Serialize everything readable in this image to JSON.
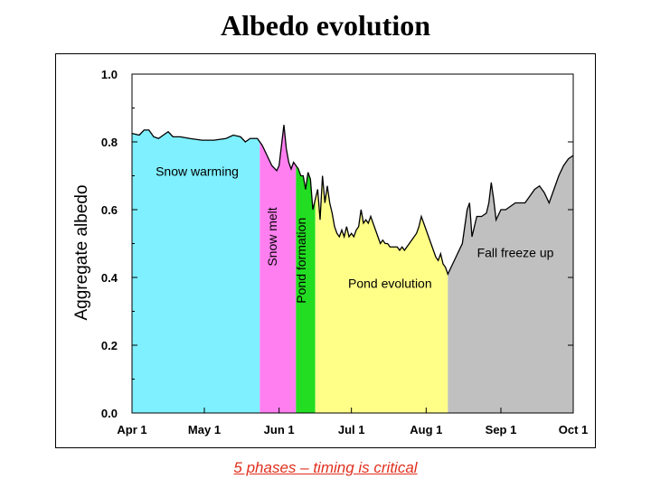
{
  "title": "Albedo evolution",
  "caption": "5 phases – timing is critical",
  "chart_data": {
    "type": "area",
    "title": "Albedo evolution",
    "xlabel": "",
    "ylabel": "Aggregate albedo",
    "x_unit": "day of year",
    "xlim": [
      91,
      274
    ],
    "ylim": [
      0.0,
      1.0
    ],
    "x_ticks": [
      {
        "label": "Apr 1",
        "value": 91
      },
      {
        "label": "May 1",
        "value": 121
      },
      {
        "label": "Jun 1",
        "value": 152
      },
      {
        "label": "Jul 1",
        "value": 182
      },
      {
        "label": "Aug 1",
        "value": 213
      },
      {
        "label": "Sep 1",
        "value": 244
      },
      {
        "label": "Oct 1",
        "value": 274
      }
    ],
    "y_ticks": [
      {
        "label": "0.0",
        "value": 0.0
      },
      {
        "label": "0.2",
        "value": 0.2
      },
      {
        "label": "0.4",
        "value": 0.4
      },
      {
        "label": "0.6",
        "value": 0.6
      },
      {
        "label": "0.8",
        "value": 0.8
      },
      {
        "label": "1.0",
        "value": 1.0
      }
    ],
    "phases": [
      {
        "name": "Snow warming",
        "start": 91,
        "end": 144,
        "color": "#7ff0ff",
        "label_orientation": "horizontal"
      },
      {
        "name": "Snow melt",
        "start": 144,
        "end": 159,
        "color": "#ff7ff0",
        "label_orientation": "vertical"
      },
      {
        "name": "Pond formation",
        "start": 159,
        "end": 167,
        "color": "#22dd22",
        "label_orientation": "vertical"
      },
      {
        "name": "Pond evolution",
        "start": 167,
        "end": 222,
        "color": "#ffff88",
        "label_orientation": "horizontal"
      },
      {
        "name": "Fall freeze up",
        "start": 222,
        "end": 274,
        "color": "#c0c0c0",
        "label_orientation": "horizontal"
      }
    ],
    "series": [
      {
        "name": "Aggregate albedo",
        "x": [
          91,
          94,
          96,
          98,
          100,
          102,
          104,
          106,
          108,
          111,
          115,
          120,
          125,
          130,
          133,
          136,
          138,
          140,
          143,
          145,
          147,
          149,
          151,
          152,
          154,
          155,
          156,
          157,
          158,
          159,
          160,
          161,
          162,
          163,
          164,
          165,
          166,
          167,
          168,
          169,
          170,
          171,
          172,
          173,
          174,
          175,
          176,
          177,
          178,
          179,
          180,
          181,
          182,
          183,
          184,
          185,
          186,
          187,
          188,
          189,
          190,
          191,
          192,
          193,
          194,
          195,
          196,
          197,
          198,
          199,
          200,
          201,
          202,
          203,
          204,
          205,
          206,
          207,
          208,
          209,
          210,
          211,
          212,
          213,
          214,
          215,
          216,
          217,
          218,
          219,
          220,
          221,
          222,
          224,
          226,
          228,
          229,
          230,
          231,
          232,
          234,
          236,
          238,
          239,
          240,
          241,
          242,
          244,
          246,
          248,
          250,
          252,
          254,
          256,
          258,
          260,
          262,
          264,
          266,
          268,
          270,
          272,
          274
        ],
        "y": [
          0.825,
          0.82,
          0.835,
          0.835,
          0.815,
          0.81,
          0.82,
          0.83,
          0.815,
          0.815,
          0.81,
          0.805,
          0.805,
          0.81,
          0.82,
          0.815,
          0.8,
          0.81,
          0.81,
          0.79,
          0.76,
          0.73,
          0.715,
          0.73,
          0.85,
          0.78,
          0.74,
          0.72,
          0.74,
          0.73,
          0.72,
          0.7,
          0.7,
          0.66,
          0.71,
          0.69,
          0.6,
          0.63,
          0.66,
          0.57,
          0.7,
          0.62,
          0.67,
          0.62,
          0.59,
          0.55,
          0.53,
          0.52,
          0.54,
          0.52,
          0.55,
          0.52,
          0.53,
          0.52,
          0.54,
          0.55,
          0.6,
          0.56,
          0.57,
          0.56,
          0.58,
          0.56,
          0.54,
          0.52,
          0.5,
          0.51,
          0.5,
          0.5,
          0.49,
          0.49,
          0.49,
          0.49,
          0.48,
          0.49,
          0.48,
          0.49,
          0.5,
          0.51,
          0.52,
          0.53,
          0.55,
          0.58,
          0.56,
          0.54,
          0.52,
          0.5,
          0.48,
          0.46,
          0.45,
          0.47,
          0.44,
          0.43,
          0.41,
          0.44,
          0.47,
          0.5,
          0.55,
          0.6,
          0.62,
          0.52,
          0.58,
          0.58,
          0.59,
          0.62,
          0.68,
          0.63,
          0.57,
          0.6,
          0.6,
          0.61,
          0.62,
          0.62,
          0.62,
          0.64,
          0.66,
          0.67,
          0.65,
          0.62,
          0.66,
          0.7,
          0.73,
          0.75,
          0.76
        ]
      }
    ],
    "annotations": [
      {
        "text": "Snow warming",
        "x": 118,
        "y": 0.7
      },
      {
        "text": "Snow melt",
        "x": 151,
        "y": 0.52
      },
      {
        "text": "Pond formation",
        "x": 163,
        "y": 0.45
      },
      {
        "text": "Pond evolution",
        "x": 198,
        "y": 0.37
      },
      {
        "text": "Fall freeze up",
        "x": 250,
        "y": 0.46
      }
    ],
    "grid": false,
    "legend": "none"
  }
}
